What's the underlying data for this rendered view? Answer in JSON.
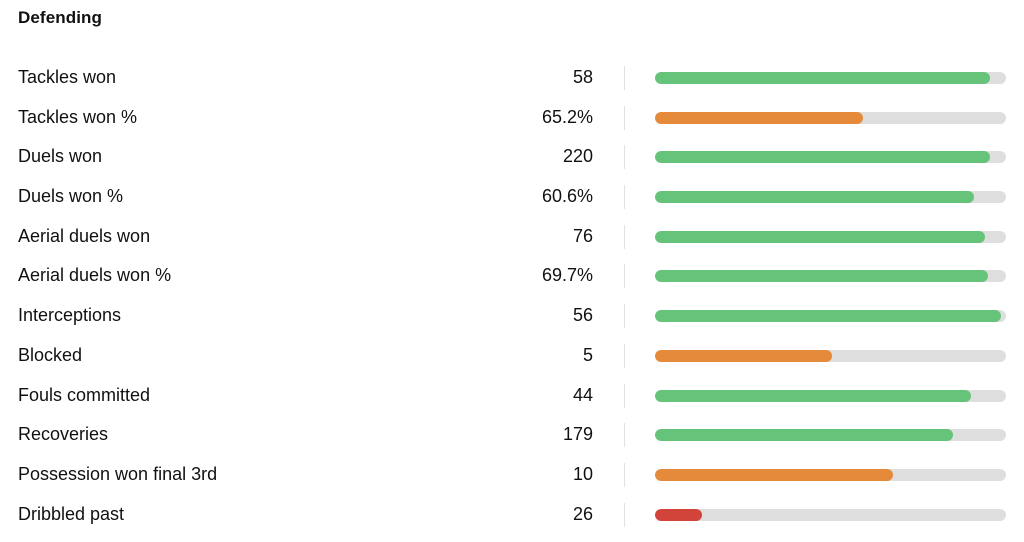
{
  "section": {
    "title": "Defending"
  },
  "colors": {
    "green": "#66c47a",
    "orange": "#e5893b",
    "red": "#d2433a",
    "track": "#dedede"
  },
  "stats": [
    {
      "label": "Tackles won",
      "value": "58",
      "fill": 0.955,
      "color": "green"
    },
    {
      "label": "Tackles won %",
      "value": "65.2%",
      "fill": 0.593,
      "color": "orange"
    },
    {
      "label": "Duels won",
      "value": "220",
      "fill": 0.955,
      "color": "green"
    },
    {
      "label": "Duels won %",
      "value": "60.6%",
      "fill": 0.91,
      "color": "green"
    },
    {
      "label": "Aerial duels won",
      "value": "76",
      "fill": 0.94,
      "color": "green"
    },
    {
      "label": "Aerial duels won %",
      "value": "69.7%",
      "fill": 0.95,
      "color": "green"
    },
    {
      "label": "Interceptions",
      "value": "56",
      "fill": 0.985,
      "color": "green"
    },
    {
      "label": "Blocked",
      "value": "5",
      "fill": 0.505,
      "color": "orange"
    },
    {
      "label": "Fouls committed",
      "value": "44",
      "fill": 0.9,
      "color": "green"
    },
    {
      "label": "Recoveries",
      "value": "179",
      "fill": 0.85,
      "color": "green"
    },
    {
      "label": "Possession won final 3rd",
      "value": "10",
      "fill": 0.677,
      "color": "orange"
    },
    {
      "label": "Dribbled past",
      "value": "26",
      "fill": 0.135,
      "color": "red"
    }
  ]
}
